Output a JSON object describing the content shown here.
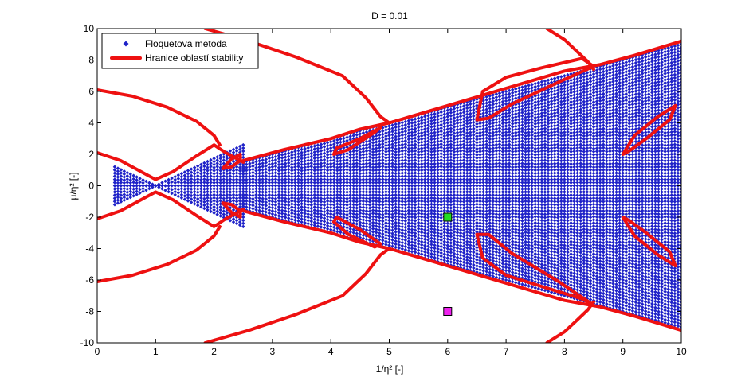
{
  "chart_data": {
    "type": "scatter",
    "title": "D = 0.01",
    "xlabel": "1/η² [-]",
    "ylabel": "μ/η² [-]",
    "xlim": [
      0,
      10
    ],
    "ylim": [
      -10,
      10
    ],
    "xticks": [
      "0",
      "1",
      "2",
      "3",
      "4",
      "5",
      "6",
      "7",
      "8",
      "9",
      "10"
    ],
    "yticks": [
      "10",
      "8",
      "6",
      "4",
      "2",
      "0",
      "-2",
      "-4",
      "-6",
      "-8",
      "-10"
    ],
    "grid": false,
    "legend_position": "top-left",
    "colors": {
      "floquet": "#1f22c8",
      "boundary": "#ee1111",
      "marker_green": "#22dd22",
      "marker_magenta": "#ee22ee"
    },
    "series": [
      {
        "name": "Floquetova metoda",
        "style": "dots",
        "description_fans": [
          {
            "x_from": 0.3,
            "x_to": 1.0,
            "y_half_width_start": 1.2,
            "y_half_width_end": 0.0
          },
          {
            "x_from": 1.0,
            "x_to": 2.5,
            "y_half_width_start": 0.0,
            "y_half_width_end": 2.6
          },
          {
            "x_from": 2.5,
            "x_to": 5.0,
            "y_half_width_start": 1.5,
            "y_half_width_end": 4.0
          },
          {
            "x_from": 5.0,
            "x_to": 10.0,
            "y_half_width_start": 4.0,
            "y_half_width_end": 9.0
          }
        ]
      },
      {
        "name": "Hranice oblastí stability",
        "style": "thick-line",
        "curves": [
          {
            "id": "tongue-0-upper",
            "points": [
              [
                0.0,
                2.1
              ],
              [
                0.4,
                1.6
              ],
              [
                0.8,
                0.8
              ],
              [
                1.0,
                0.4
              ],
              [
                1.3,
                0.9
              ],
              [
                1.7,
                1.9
              ],
              [
                2.0,
                2.6
              ],
              [
                2.2,
                2.1
              ],
              [
                2.5,
                1.5
              ]
            ]
          },
          {
            "id": "tongue-0-lower",
            "points": [
              [
                0.0,
                -2.1
              ],
              [
                0.4,
                -1.6
              ],
              [
                0.8,
                -0.8
              ],
              [
                1.0,
                -0.4
              ],
              [
                1.3,
                -0.9
              ],
              [
                1.7,
                -1.9
              ],
              [
                2.0,
                -2.6
              ],
              [
                2.2,
                -2.1
              ],
              [
                2.5,
                -1.5
              ]
            ]
          },
          {
            "id": "outer-upper-1",
            "points": [
              [
                0.0,
                6.1
              ],
              [
                0.6,
                5.7
              ],
              [
                1.2,
                5.0
              ],
              [
                1.7,
                4.1
              ],
              [
                2.0,
                3.2
              ],
              [
                2.1,
                2.6
              ]
            ]
          },
          {
            "id": "outer-lower-1",
            "points": [
              [
                0.0,
                -6.1
              ],
              [
                0.6,
                -5.7
              ],
              [
                1.2,
                -5.0
              ],
              [
                1.7,
                -4.1
              ],
              [
                2.0,
                -3.2
              ],
              [
                2.1,
                -2.6
              ]
            ]
          },
          {
            "id": "tongue-1-upper",
            "points": [
              [
                2.5,
                1.6
              ],
              [
                3.2,
                2.3
              ],
              [
                4.0,
                3.0
              ],
              [
                4.5,
                3.6
              ],
              [
                5.0,
                4.0
              ],
              [
                6.0,
                5.1
              ],
              [
                7.0,
                6.2
              ],
              [
                8.0,
                7.3
              ],
              [
                8.6,
                7.7
              ],
              [
                9.2,
                8.3
              ],
              [
                10.0,
                9.2
              ]
            ]
          },
          {
            "id": "tongue-1-lower",
            "points": [
              [
                2.5,
                -1.6
              ],
              [
                3.2,
                -2.3
              ],
              [
                4.0,
                -3.0
              ],
              [
                4.5,
                -3.6
              ],
              [
                5.0,
                -4.0
              ],
              [
                6.0,
                -5.1
              ],
              [
                7.0,
                -6.2
              ],
              [
                8.0,
                -7.3
              ],
              [
                8.6,
                -7.7
              ],
              [
                9.2,
                -8.3
              ],
              [
                10.0,
                -9.2
              ]
            ]
          },
          {
            "id": "outer-upper-2",
            "points": [
              [
                1.85,
                10.0
              ],
              [
                2.6,
                9.2
              ],
              [
                3.4,
                8.2
              ],
              [
                4.2,
                7.0
              ],
              [
                4.6,
                5.6
              ],
              [
                4.85,
                4.4
              ],
              [
                5.0,
                4.0
              ]
            ]
          },
          {
            "id": "outer-lower-2",
            "points": [
              [
                1.85,
                -10.0
              ],
              [
                2.6,
                -9.2
              ],
              [
                3.4,
                -8.2
              ],
              [
                4.2,
                -7.0
              ],
              [
                4.6,
                -5.6
              ],
              [
                4.85,
                -4.4
              ],
              [
                5.0,
                -4.0
              ]
            ]
          },
          {
            "id": "outer-upper-3",
            "points": [
              [
                7.7,
                10.0
              ],
              [
                8.0,
                9.3
              ],
              [
                8.2,
                8.6
              ],
              [
                8.4,
                7.9
              ],
              [
                8.5,
                7.4
              ]
            ]
          },
          {
            "id": "outer-lower-3",
            "points": [
              [
                7.7,
                -10.0
              ],
              [
                8.0,
                -9.3
              ],
              [
                8.2,
                -8.6
              ],
              [
                8.4,
                -7.9
              ],
              [
                8.5,
                -7.4
              ]
            ]
          },
          {
            "id": "island-a-upper",
            "closed": true,
            "points": [
              [
                2.15,
                1.1
              ],
              [
                2.3,
                1.7
              ],
              [
                2.45,
                2.0
              ],
              [
                2.45,
                1.6
              ],
              [
                2.3,
                1.2
              ]
            ]
          },
          {
            "id": "island-a-lower",
            "closed": true,
            "points": [
              [
                2.15,
                -1.1
              ],
              [
                2.3,
                -1.7
              ],
              [
                2.45,
                -2.0
              ],
              [
                2.45,
                -1.6
              ],
              [
                2.3,
                -1.2
              ]
            ]
          },
          {
            "id": "island-b-upper",
            "closed": true,
            "points": [
              [
                4.1,
                2.4
              ],
              [
                4.5,
                3.0
              ],
              [
                4.85,
                3.7
              ],
              [
                4.75,
                3.4
              ],
              [
                4.3,
                2.3
              ],
              [
                4.05,
                2.0
              ]
            ]
          },
          {
            "id": "island-b-lower",
            "closed": true,
            "points": [
              [
                4.1,
                -2.0
              ],
              [
                4.5,
                -2.8
              ],
              [
                4.85,
                -3.7
              ],
              [
                4.75,
                -3.9
              ],
              [
                4.3,
                -3.1
              ],
              [
                4.05,
                -2.3
              ]
            ]
          },
          {
            "id": "island-c-upper",
            "closed": true,
            "points": [
              [
                6.5,
                4.2
              ],
              [
                6.6,
                6.0
              ],
              [
                7.0,
                6.9
              ],
              [
                7.6,
                7.5
              ],
              [
                8.3,
                8.1
              ],
              [
                8.5,
                7.6
              ],
              [
                7.9,
                6.6
              ],
              [
                7.1,
                5.2
              ],
              [
                6.7,
                4.3
              ]
            ]
          },
          {
            "id": "island-c-lower",
            "closed": true,
            "points": [
              [
                6.5,
                -3.1
              ],
              [
                6.6,
                -4.6
              ],
              [
                7.0,
                -5.7
              ],
              [
                7.6,
                -6.4
              ],
              [
                8.3,
                -7.2
              ],
              [
                8.5,
                -7.6
              ],
              [
                7.9,
                -6.1
              ],
              [
                7.1,
                -4.3
              ],
              [
                6.7,
                -3.1
              ]
            ]
          },
          {
            "id": "island-d-upper",
            "closed": true,
            "points": [
              [
                9.0,
                2.0
              ],
              [
                9.2,
                3.2
              ],
              [
                9.6,
                4.4
              ],
              [
                9.9,
                5.1
              ],
              [
                9.8,
                4.2
              ],
              [
                9.4,
                3.0
              ],
              [
                9.1,
                2.2
              ]
            ]
          },
          {
            "id": "island-d-lower",
            "closed": true,
            "points": [
              [
                9.0,
                -2.0
              ],
              [
                9.2,
                -3.2
              ],
              [
                9.6,
                -4.4
              ],
              [
                9.9,
                -5.1
              ],
              [
                9.8,
                -4.2
              ],
              [
                9.4,
                -3.0
              ],
              [
                9.1,
                -2.2
              ]
            ]
          }
        ]
      }
    ],
    "markers": [
      {
        "x": 6.0,
        "y": -2.0,
        "color": "#22dd22"
      },
      {
        "x": 6.0,
        "y": -8.0,
        "color": "#ee22ee"
      }
    ]
  }
}
